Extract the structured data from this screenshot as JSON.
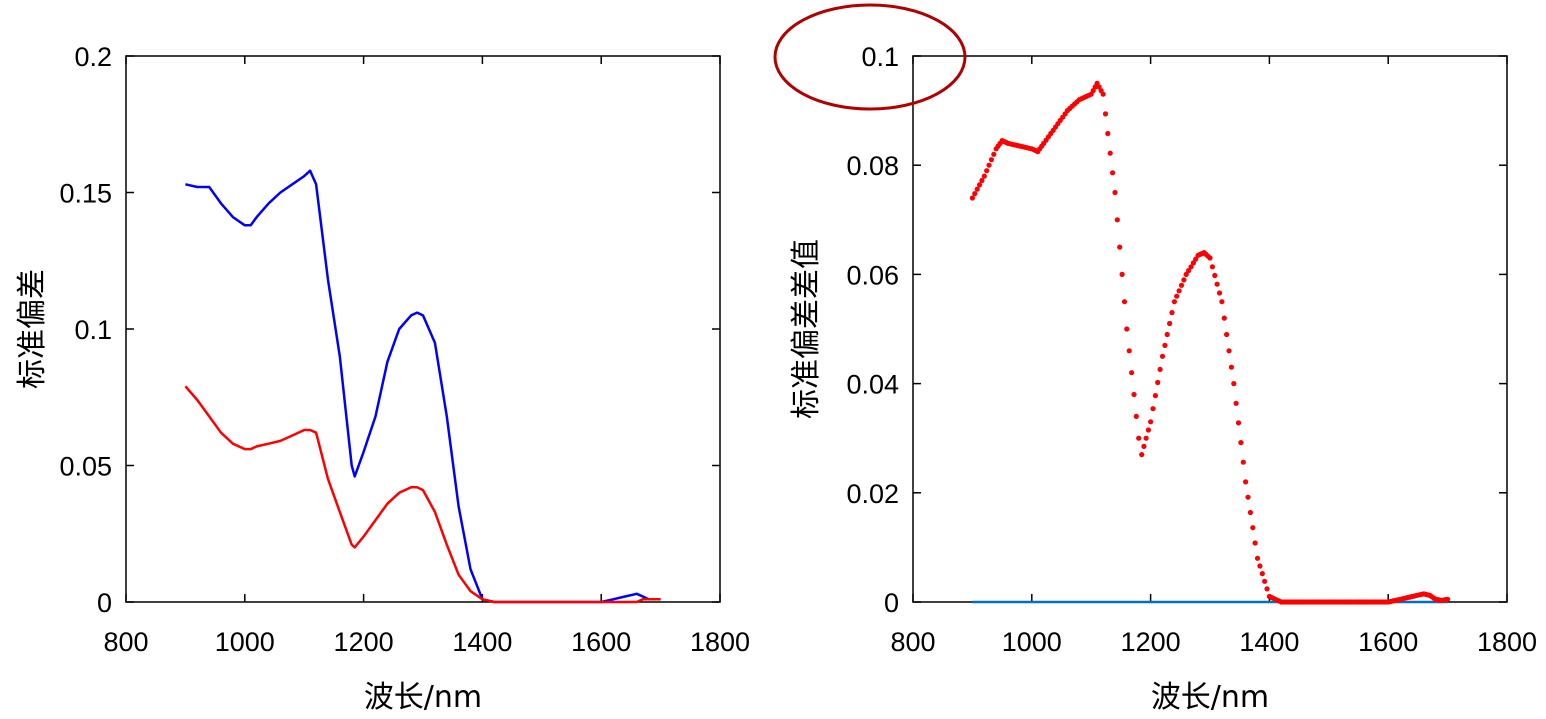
{
  "chart_data": [
    {
      "type": "line",
      "title": "",
      "xlabel": "波长/nm",
      "ylabel": "标准偏差",
      "xlim": [
        800,
        1800
      ],
      "ylim": [
        0,
        0.2
      ],
      "x_ticks": [
        "800",
        "1000",
        "1200",
        "1400",
        "1600",
        "1800"
      ],
      "y_ticks": [
        "0",
        "0.05",
        "0.1",
        "0.15",
        "0.2"
      ],
      "grid": false,
      "x": [
        900,
        920,
        940,
        960,
        980,
        1000,
        1010,
        1020,
        1040,
        1060,
        1080,
        1100,
        1110,
        1120,
        1140,
        1160,
        1180,
        1185,
        1200,
        1220,
        1240,
        1260,
        1280,
        1290,
        1300,
        1320,
        1340,
        1360,
        1380,
        1400,
        1420,
        1450,
        1500,
        1550,
        1600,
        1620,
        1640,
        1660,
        1670,
        1680,
        1690,
        1700
      ],
      "series": [
        {
          "name": "",
          "color": "#0000ff",
          "values": [
            0.153,
            0.152,
            0.152,
            0.146,
            0.141,
            0.138,
            0.138,
            0.141,
            0.146,
            0.15,
            0.153,
            0.156,
            0.158,
            0.153,
            0.118,
            0.09,
            0.05,
            0.046,
            0.055,
            0.068,
            0.088,
            0.1,
            0.105,
            0.106,
            0.105,
            0.095,
            0.068,
            0.035,
            0.012,
            0.001,
            0.0,
            0.0,
            0.0,
            0.0,
            0.0,
            0.001,
            0.002,
            0.003,
            0.002,
            0.001,
            0.001,
            0.001
          ]
        },
        {
          "name": "",
          "color": "#ff0000",
          "values": [
            0.079,
            0.074,
            0.068,
            0.062,
            0.058,
            0.056,
            0.056,
            0.057,
            0.058,
            0.059,
            0.061,
            0.063,
            0.063,
            0.062,
            0.045,
            0.033,
            0.021,
            0.02,
            0.024,
            0.03,
            0.036,
            0.04,
            0.042,
            0.042,
            0.041,
            0.033,
            0.021,
            0.01,
            0.004,
            0.001,
            0.0,
            0.0,
            0.0,
            0.0,
            0.0,
            0.0,
            0.0,
            0.0,
            0.001,
            0.001,
            0.001,
            0.001
          ]
        }
      ]
    },
    {
      "type": "scatter",
      "title": "",
      "xlabel": "波长/nm",
      "ylabel": "标准偏差差值",
      "xlim": [
        800,
        1800
      ],
      "ylim": [
        0,
        0.1
      ],
      "x_ticks": [
        "800",
        "1000",
        "1200",
        "1400",
        "1600",
        "1800"
      ],
      "y_ticks": [
        "0",
        "0.02",
        "0.04",
        "0.06",
        "0.08",
        "0.1"
      ],
      "grid": false,
      "x": [
        900,
        920,
        940,
        950,
        960,
        980,
        1000,
        1010,
        1020,
        1040,
        1060,
        1080,
        1100,
        1110,
        1120,
        1140,
        1160,
        1180,
        1185,
        1200,
        1220,
        1240,
        1260,
        1280,
        1290,
        1300,
        1320,
        1340,
        1360,
        1380,
        1400,
        1420,
        1450,
        1500,
        1550,
        1600,
        1620,
        1640,
        1660,
        1670,
        1680,
        1690,
        1700
      ],
      "values": [
        0.074,
        0.078,
        0.083,
        0.0845,
        0.084,
        0.0835,
        0.083,
        0.0825,
        0.084,
        0.087,
        0.09,
        0.092,
        0.093,
        0.095,
        0.093,
        0.075,
        0.05,
        0.03,
        0.027,
        0.033,
        0.045,
        0.055,
        0.06,
        0.0635,
        0.064,
        0.063,
        0.055,
        0.04,
        0.022,
        0.008,
        0.001,
        0.0,
        0.0,
        0.0,
        0.0,
        0.0,
        0.0005,
        0.001,
        0.0015,
        0.0012,
        0.0005,
        0.0003,
        0.0005
      ],
      "point_color": "#ff0000",
      "baseline": {
        "y": 0,
        "color": "#0070c0",
        "x_range": [
          900,
          1700
        ]
      },
      "annotation": {
        "shape": "ellipse",
        "color": "#b00000",
        "target": "0.1"
      }
    }
  ]
}
